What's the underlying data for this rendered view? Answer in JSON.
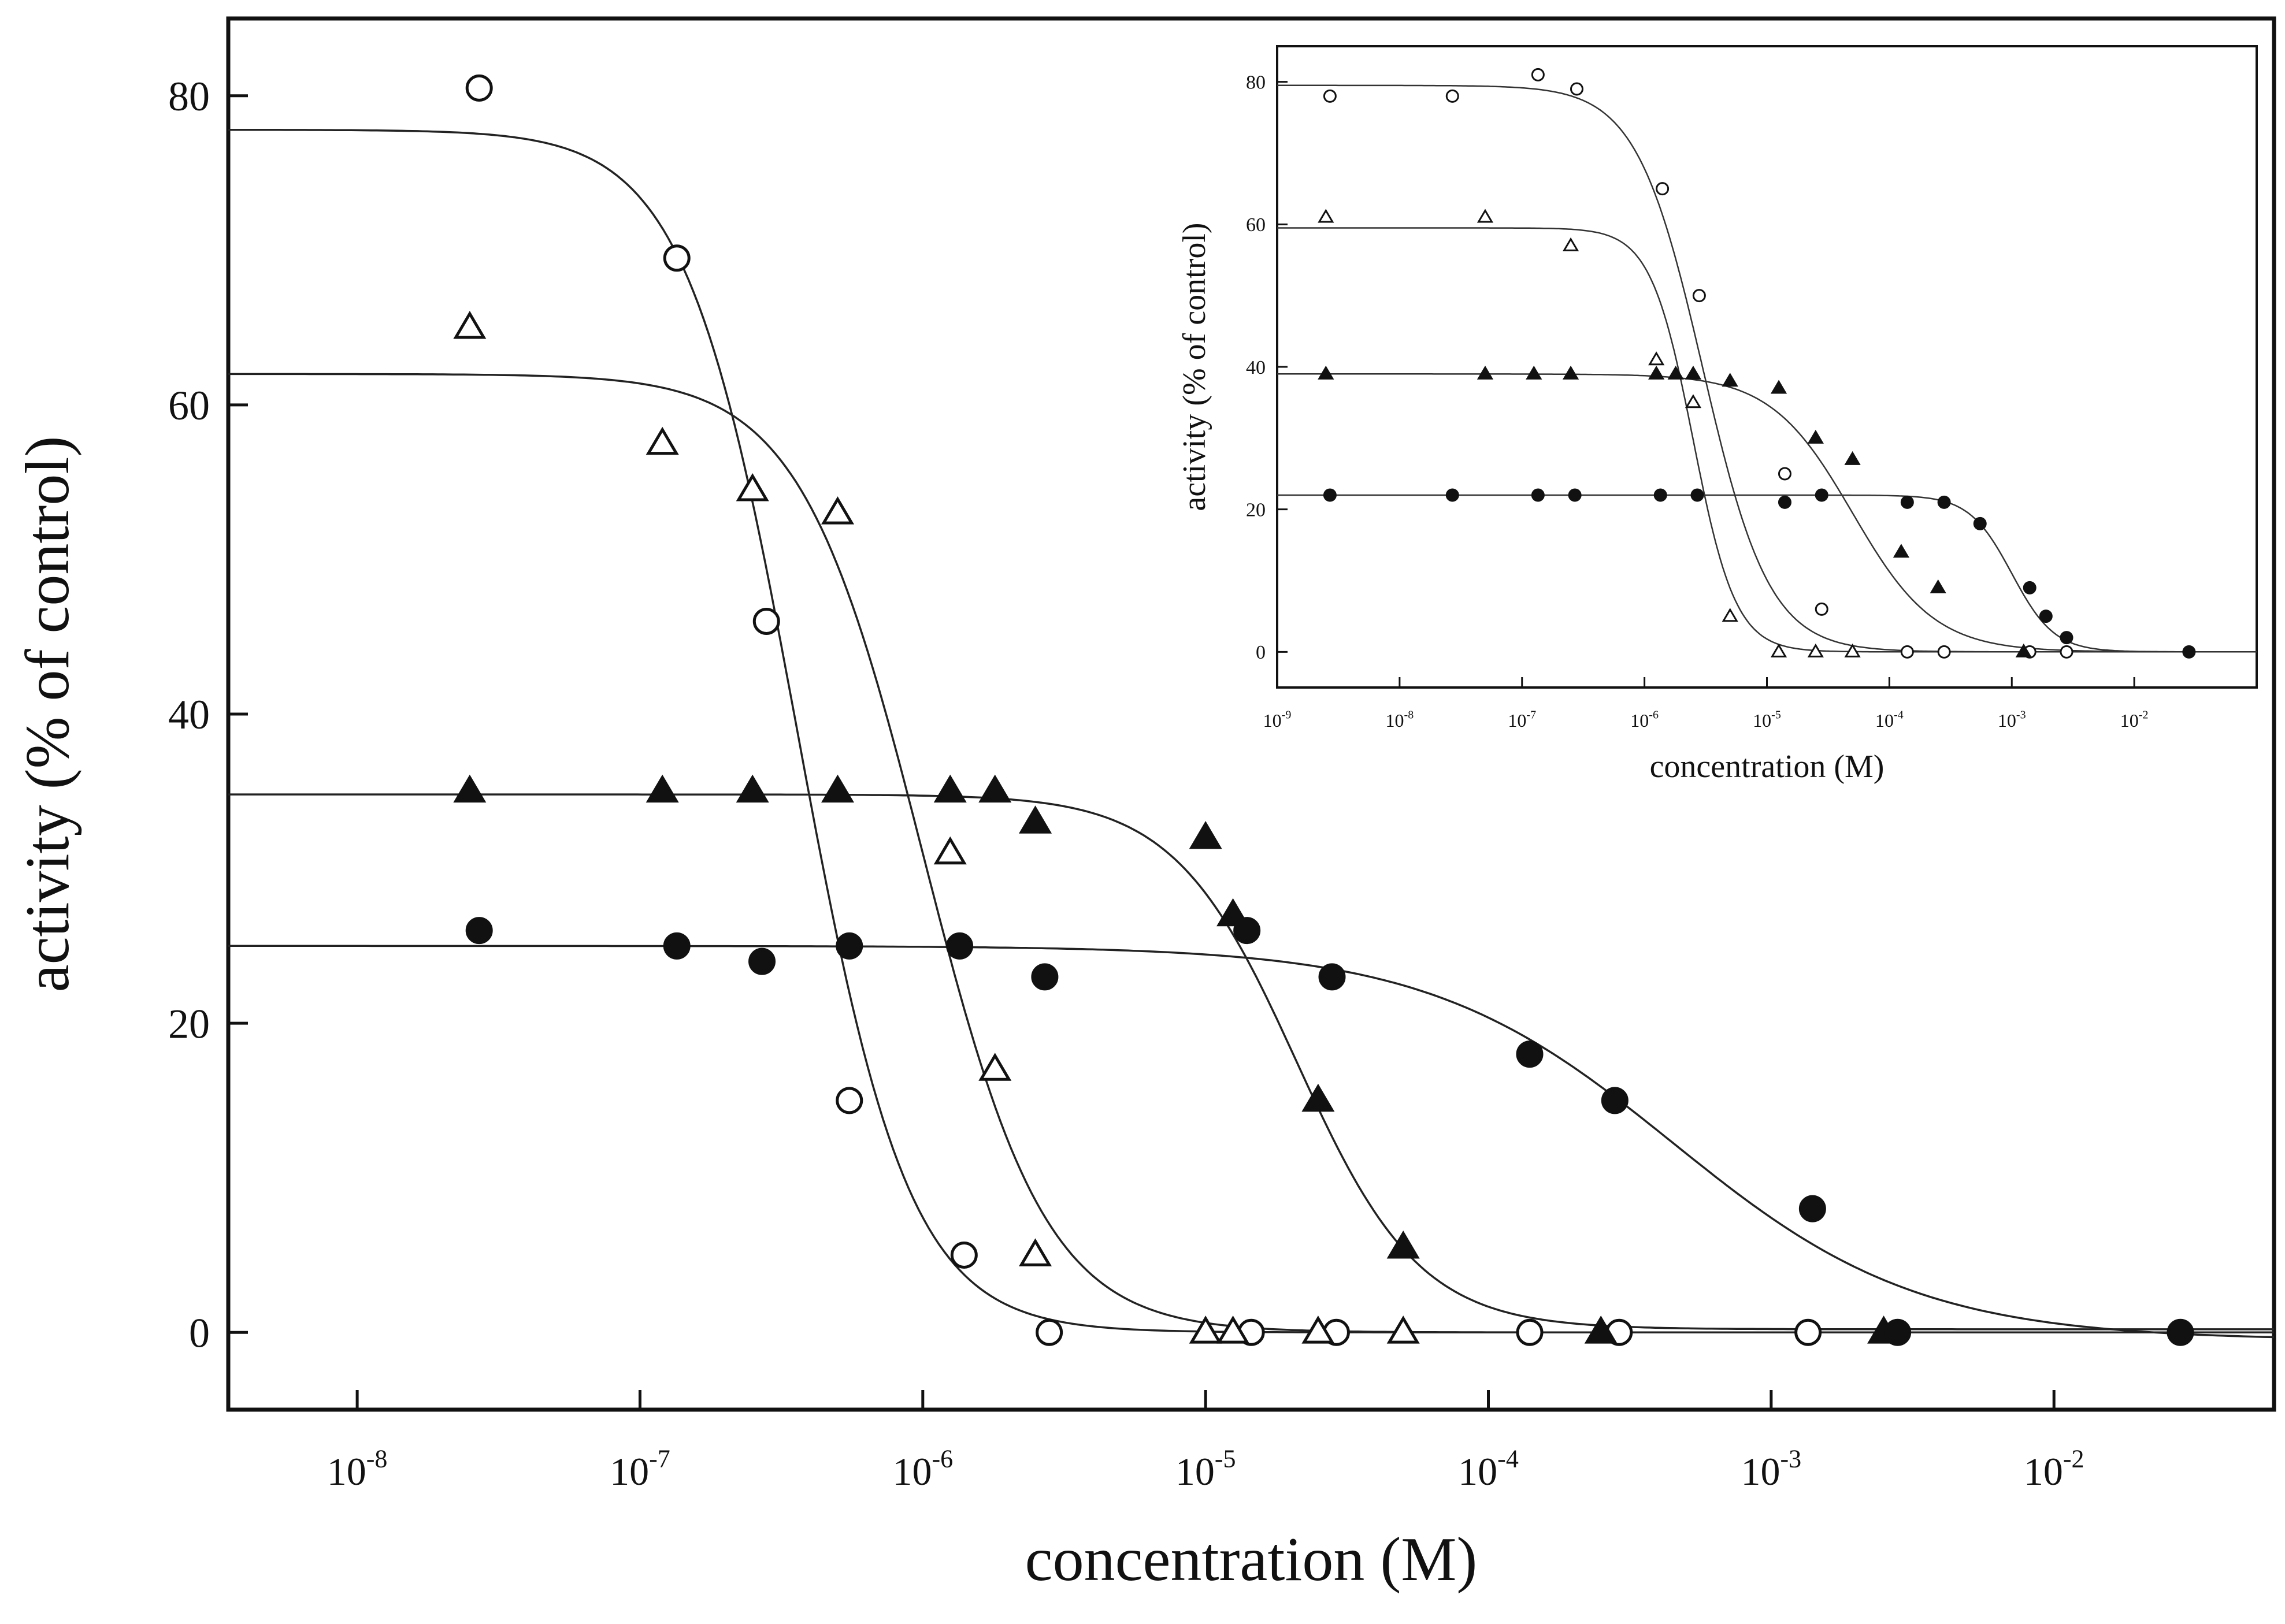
{
  "chart_data": [
    {
      "type": "scatter",
      "title": "",
      "xlabel": "concentration (M)",
      "ylabel": "activity (% of control)",
      "xscale": "log",
      "xlim": [
        3.5e-09,
        0.06
      ],
      "ylim": [
        -5,
        85
      ],
      "xtick_labels": [
        {
          "base": "10",
          "exp": "-8"
        },
        {
          "base": "10",
          "exp": "-7"
        },
        {
          "base": "10",
          "exp": "-6"
        },
        {
          "base": "10",
          "exp": "-5"
        },
        {
          "base": "10",
          "exp": "-4"
        },
        {
          "base": "10",
          "exp": "-3"
        },
        {
          "base": "10",
          "exp": "-2"
        }
      ],
      "ytick_labels": [
        "0",
        "20",
        "40",
        "60",
        "80"
      ],
      "grid": false,
      "legend": "none",
      "series": [
        {
          "marker": "open-circle",
          "points": [
            [
              2.7e-08,
              80.5
            ],
            [
              1.35e-07,
              69.5
            ],
            [
              2.8e-07,
              46
            ],
            [
              5.5e-07,
              15
            ],
            [
              1.4e-06,
              5
            ],
            [
              2.8e-06,
              0
            ],
            [
              1.45e-05,
              0
            ],
            [
              2.9e-05,
              0
            ],
            [
              0.00014,
              0
            ],
            [
              0.00029,
              0
            ],
            [
              0.00135,
              0
            ]
          ],
          "fit": {
            "top": 77.8,
            "bottom": 0,
            "ic50": 3.6e-07,
            "hill": 2.2
          }
        },
        {
          "marker": "open-triangle",
          "points": [
            [
              2.5e-08,
              65
            ],
            [
              1.2e-07,
              57.5
            ],
            [
              2.5e-07,
              54.5
            ],
            [
              5e-07,
              53
            ],
            [
              1.25e-06,
              31
            ],
            [
              1.8e-06,
              17
            ],
            [
              2.5e-06,
              5
            ],
            [
              1e-05,
              0
            ],
            [
              1.25e-05,
              0
            ],
            [
              2.5e-05,
              0
            ],
            [
              5e-05,
              0
            ]
          ],
          "fit": {
            "top": 62,
            "bottom": 0,
            "ic50": 1e-06,
            "hill": 2
          }
        },
        {
          "marker": "filled-triangle",
          "points": [
            [
              2.5e-08,
              35
            ],
            [
              1.2e-07,
              35
            ],
            [
              2.5e-07,
              35
            ],
            [
              5e-07,
              35
            ],
            [
              1.25e-06,
              35
            ],
            [
              1.8e-06,
              35
            ],
            [
              2.5e-06,
              33
            ],
            [
              1e-05,
              32
            ],
            [
              1.25e-05,
              27
            ],
            [
              2.5e-05,
              15
            ],
            [
              5e-05,
              5.5
            ],
            [
              0.00025,
              0
            ],
            [
              0.0025,
              0
            ]
          ],
          "fit": {
            "top": 34.8,
            "bottom": 0.2,
            "ic50": 2.1e-05,
            "hill": 2
          }
        },
        {
          "marker": "filled-circle",
          "points": [
            [
              2.7e-08,
              26
            ],
            [
              1.35e-07,
              25
            ],
            [
              2.7e-07,
              24
            ],
            [
              5.5e-07,
              25
            ],
            [
              1.35e-06,
              25
            ],
            [
              2.7e-06,
              23
            ],
            [
              1.4e-05,
              26
            ],
            [
              2.8e-05,
              23
            ],
            [
              0.00014,
              18
            ],
            [
              0.00028,
              15
            ],
            [
              0.0014,
              8
            ],
            [
              0.0028,
              0
            ],
            [
              0.028,
              0
            ]
          ],
          "fit": {
            "top": 25,
            "bottom": -0.5,
            "ic50": 0.00045,
            "hill": 1
          }
        }
      ]
    },
    {
      "type": "scatter",
      "title": "",
      "xlabel": "concentration (M)",
      "ylabel": "activity (% of control)",
      "xscale": "log",
      "xlim": [
        1e-09,
        0.1
      ],
      "ylim": [
        -5,
        85
      ],
      "xtick_labels": [
        {
          "base": "10",
          "exp": "-9"
        },
        {
          "base": "10",
          "exp": "-8"
        },
        {
          "base": "10",
          "exp": "-7"
        },
        {
          "base": "10",
          "exp": "-6"
        },
        {
          "base": "10",
          "exp": "-5"
        },
        {
          "base": "10",
          "exp": "-4"
        },
        {
          "base": "10",
          "exp": "-3"
        },
        {
          "base": "10",
          "exp": "-2"
        }
      ],
      "ytick_labels": [
        "0",
        "20",
        "40",
        "60",
        "80"
      ],
      "grid": false,
      "legend": "none",
      "series": [
        {
          "marker": "open-circle",
          "points": [
            [
              2.7e-09,
              78
            ],
            [
              2.7e-08,
              78
            ],
            [
              1.35e-07,
              81
            ],
            [
              2.8e-07,
              79
            ],
            [
              1.4e-06,
              65
            ],
            [
              2.8e-06,
              50
            ],
            [
              1.4e-05,
              25
            ],
            [
              2.8e-05,
              6
            ],
            [
              0.00014,
              0
            ],
            [
              0.00028,
              0
            ],
            [
              0.0014,
              0
            ],
            [
              0.0028,
              0
            ]
          ],
          "fit": {
            "top": 79.5,
            "bottom": 0,
            "ic50": 3e-06,
            "hill": 1.6
          }
        },
        {
          "marker": "open-triangle",
          "points": [
            [
              2.5e-09,
              61
            ],
            [
              5e-08,
              61
            ],
            [
              2.5e-07,
              57
            ],
            [
              1.25e-06,
              41
            ],
            [
              2.5e-06,
              35
            ],
            [
              5e-06,
              5
            ],
            [
              1.25e-05,
              0
            ],
            [
              2.5e-05,
              0
            ],
            [
              5e-05,
              0
            ]
          ],
          "fit": {
            "top": 59.5,
            "bottom": 0,
            "ic50": 2.5e-06,
            "hill": 2.5
          }
        },
        {
          "marker": "filled-triangle",
          "points": [
            [
              2.5e-09,
              39
            ],
            [
              5e-08,
              39
            ],
            [
              1.25e-07,
              39
            ],
            [
              2.5e-07,
              39
            ],
            [
              1.25e-06,
              39
            ],
            [
              1.8e-06,
              39
            ],
            [
              2.5e-06,
              39
            ],
            [
              5e-06,
              38
            ],
            [
              1.25e-05,
              37
            ],
            [
              2.5e-05,
              30
            ],
            [
              5e-05,
              27
            ],
            [
              0.000125,
              14
            ],
            [
              0.00025,
              9
            ],
            [
              0.00125,
              0
            ]
          ],
          "fit": {
            "top": 39,
            "bottom": 0,
            "ic50": 5e-05,
            "hill": 1.3
          }
        },
        {
          "marker": "filled-circle",
          "points": [
            [
              2.7e-09,
              22
            ],
            [
              2.7e-08,
              22
            ],
            [
              1.35e-07,
              22
            ],
            [
              2.7e-07,
              22
            ],
            [
              1.35e-06,
              22
            ],
            [
              2.7e-06,
              22
            ],
            [
              1.4e-05,
              21
            ],
            [
              2.8e-05,
              22
            ],
            [
              0.00014,
              21
            ],
            [
              0.00028,
              21
            ],
            [
              0.00055,
              18
            ],
            [
              0.0014,
              9
            ],
            [
              0.0019,
              5
            ],
            [
              0.0028,
              2
            ],
            [
              0.028,
              0
            ]
          ],
          "fit": {
            "top": 22,
            "bottom": 0,
            "ic50": 0.001,
            "hill": 2.5
          }
        }
      ]
    }
  ]
}
